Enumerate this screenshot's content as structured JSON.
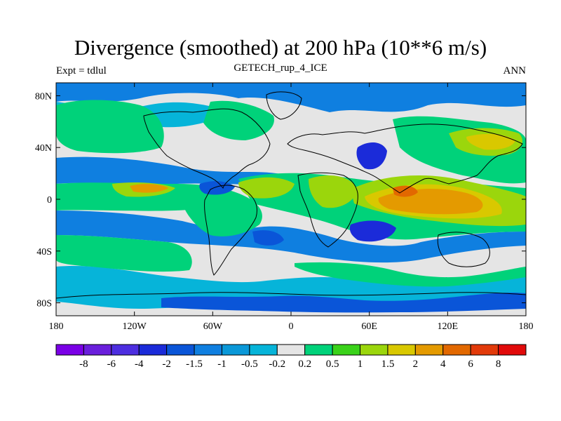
{
  "header": {
    "title": "Divergence (smoothed) at 200 hPa (10**6 m/s)",
    "subtitle": "GETECH_rup_4_ICE",
    "left_label": "Expt = tdlul",
    "right_label": "ANN"
  },
  "axes": {
    "x_ticks": [
      "180",
      "120W",
      "60W",
      "0",
      "60E",
      "120E",
      "180"
    ],
    "y_ticks": [
      "80N",
      "40N",
      "0",
      "40S",
      "80S"
    ]
  },
  "colorbar": {
    "colors": [
      "#7a00e6",
      "#6a1fdc",
      "#4d2ee0",
      "#1b2bd9",
      "#0a55d8",
      "#0f7fe0",
      "#0a98d8",
      "#06b4d9",
      "#e5e5e5",
      "#00d27a",
      "#3ad21a",
      "#9bd60c",
      "#d9c800",
      "#e49a00",
      "#e26800",
      "#e23a0a",
      "#e10a0a"
    ],
    "labels": [
      "-8",
      "-6",
      "-4",
      "-2",
      "-1.5",
      "-1",
      "-0.5",
      "-0.2",
      "0.2",
      "0.5",
      "1",
      "1.5",
      "2",
      "4",
      "6",
      "8"
    ]
  },
  "colors": {
    "background_field": "#e5e5e5",
    "coast": "#000000"
  }
}
